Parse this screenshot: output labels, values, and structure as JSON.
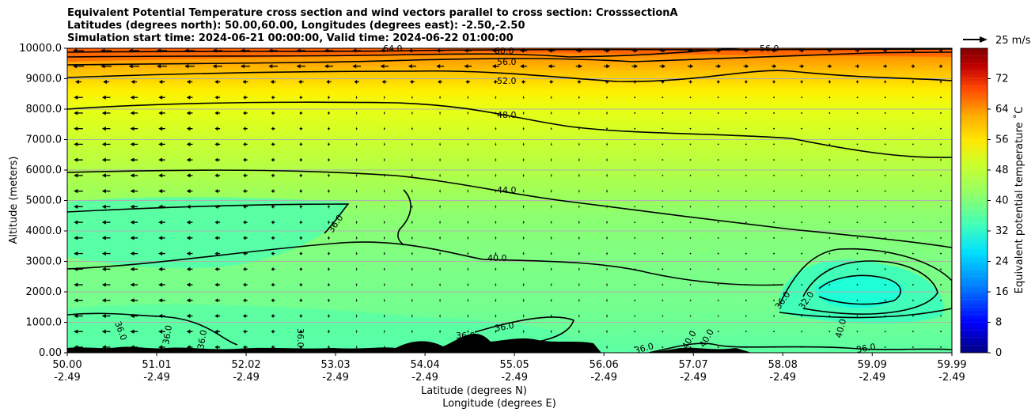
{
  "titles": {
    "line1": "Equivalent Potential Temperature cross section and wind vectors parallel to cross section: CrosssectionA",
    "line2": "Latitudes (degrees north): 50.00,60.00, Longitudes (degrees east): -2.50,-2.50",
    "line3": "Simulation start time: 2024-06-21 00:00:00, Valid time: 2024-06-22 01:00:00"
  },
  "chart_data": {
    "type": "contour",
    "ylabel": "Altitude (meters)",
    "xlabel_lat": "Latitude (degrees N)",
    "xlabel_lon": "Longitude (degrees E)",
    "ylim": [
      0,
      10000
    ],
    "yticks": [
      "0.00",
      "1000.0",
      "2000.0",
      "3000.0",
      "4000.0",
      "5000.0",
      "6000.0",
      "7000.0",
      "8000.0",
      "9000.0",
      "10000.0"
    ],
    "xlim": [
      50.0,
      59.99
    ],
    "xticks_lat": [
      "50.00",
      "51.01",
      "52.02",
      "53.03",
      "54.04",
      "55.05",
      "56.06",
      "57.07",
      "58.08",
      "59.09",
      "59.99"
    ],
    "xticks_lon": [
      "-2.49",
      "-2.49",
      "-2.49",
      "-2.49",
      "-2.49",
      "-2.49",
      "-2.49",
      "-2.49",
      "-2.49",
      "-2.49",
      "-2.49"
    ],
    "colorbar": {
      "label": "Equivalent potential temperature ˚C",
      "min": 0,
      "max": 80,
      "ticks": [
        "0",
        "8",
        "16",
        "24",
        "32",
        "40",
        "48",
        "56",
        "64",
        "72"
      ],
      "stops": [
        "#000080",
        "#0000ff",
        "#0080ff",
        "#00e0ff",
        "#40ffb8",
        "#90ff68",
        "#ccff2a",
        "#ffe600",
        "#ffaa00",
        "#ff4500",
        "#c00000",
        "#800000"
      ]
    },
    "wind_reference": {
      "label": "25 m/s",
      "value": 25
    },
    "contour_levels_labeled": [
      "64.0",
      "60.0",
      "56.0",
      "56.0",
      "52.0",
      "48.0",
      "44.0",
      "40.0",
      "36.0",
      "36.0",
      "36.0",
      "36.0",
      "36.0",
      "36.0",
      "36.0",
      "36.0",
      "36.0",
      "32.0",
      "40.0",
      "40.0",
      "36.0",
      "40.0"
    ]
  }
}
